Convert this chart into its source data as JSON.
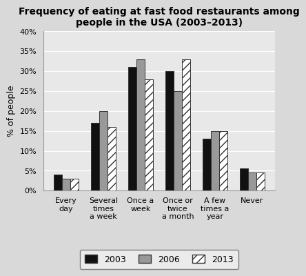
{
  "title": "Frequency of eating at fast food restaurants among\npeople in the USA (2003–2013)",
  "ylabel": "% of people",
  "categories": [
    "Every\nday",
    "Several\ntimes\na week",
    "Once a\nweek",
    "Once or\ntwice\na month",
    "A few\ntimes a\nyear",
    "Never"
  ],
  "series": {
    "2003": [
      4,
      17,
      31,
      30,
      13,
      5.5
    ],
    "2006": [
      3,
      20,
      33,
      25,
      15,
      4.5
    ],
    "2013": [
      3,
      16,
      28,
      33,
      15,
      4.5
    ]
  },
  "colors": {
    "2003": "#111111",
    "2006": "#999999",
    "2013": "#ffffff"
  },
  "hatch": {
    "2003": "",
    "2006": "",
    "2013": "///"
  },
  "edgecolor": "#333333",
  "ylim": [
    0,
    40
  ],
  "yticks": [
    0,
    5,
    10,
    15,
    20,
    25,
    30,
    35,
    40
  ],
  "ytick_labels": [
    "0%",
    "5%",
    "10%",
    "15%",
    "20%",
    "25%",
    "30%",
    "35%",
    "40%"
  ],
  "bar_width": 0.22,
  "legend_labels": [
    "2003",
    "2006",
    "2013"
  ],
  "background_color": "#d9d9d9",
  "plot_bg_color": "#e8e8e8",
  "grid_color": "#ffffff",
  "title_fontsize": 10,
  "axis_label_fontsize": 9,
  "tick_fontsize": 8,
  "legend_fontsize": 9
}
